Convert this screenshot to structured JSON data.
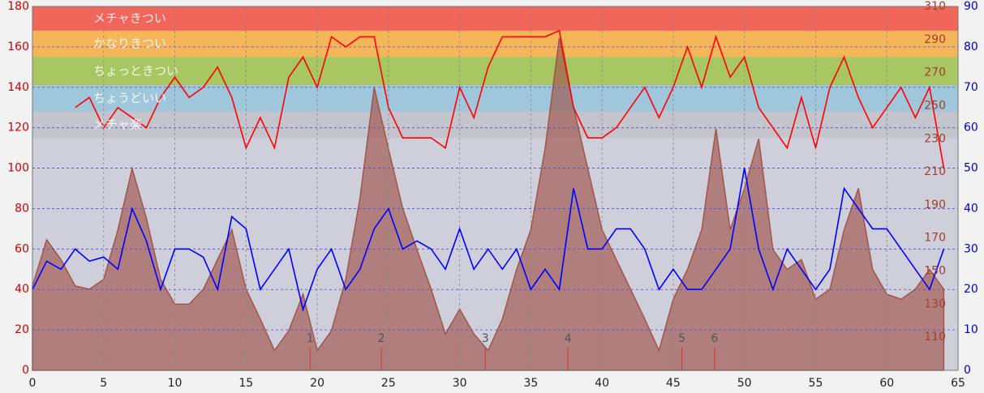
{
  "chart_data": {
    "type": "line",
    "x": [
      0,
      1,
      2,
      3,
      4,
      5,
      6,
      7,
      8,
      9,
      10,
      11,
      12,
      13,
      14,
      15,
      16,
      17,
      18,
      19,
      20,
      21,
      22,
      23,
      24,
      25,
      26,
      27,
      28,
      29,
      30,
      31,
      32,
      33,
      34,
      35,
      36,
      37,
      38,
      39,
      40,
      41,
      42,
      43,
      44,
      45,
      46,
      47,
      48,
      49,
      50,
      51,
      52,
      53,
      54,
      55,
      56,
      57,
      58,
      59,
      60,
      61,
      62,
      63,
      64
    ],
    "xlim": [
      0,
      65
    ],
    "xticks": [
      0,
      5,
      10,
      15,
      20,
      25,
      30,
      35,
      40,
      45,
      50,
      55,
      60,
      65
    ],
    "ylim": [
      0,
      180
    ],
    "yticks": [
      0,
      20,
      40,
      60,
      80,
      100,
      120,
      140,
      160,
      180
    ],
    "y2lim": [
      90,
      310
    ],
    "y2ticks": [
      110,
      130,
      150,
      170,
      190,
      210,
      230,
      250,
      270,
      290,
      310
    ],
    "y3lim": [
      0,
      90
    ],
    "y3ticks": [
      0,
      10,
      20,
      30,
      40,
      50,
      60,
      70,
      80,
      90
    ],
    "grid": true,
    "zones": [
      {
        "label": "メチャきつい",
        "from": 168,
        "to": 180,
        "color": "#f0665a"
      },
      {
        "label": "かなりきつい",
        "from": 155,
        "to": 168,
        "color": "#f5b65a"
      },
      {
        "label": "ちょっときつい",
        "from": 141,
        "to": 155,
        "color": "#a8c662"
      },
      {
        "label": "ちょうどいい",
        "from": 128,
        "to": 141,
        "color": "#9fc6da"
      },
      {
        "label": "メチャ楽",
        "from": 115,
        "to": 128,
        "color": "#c4c4cc"
      }
    ],
    "markers": [
      {
        "x": 19.5,
        "label": "1"
      },
      {
        "x": 24.5,
        "label": "2"
      },
      {
        "x": 31.8,
        "label": "3"
      },
      {
        "x": 37.6,
        "label": "4"
      },
      {
        "x": 45.6,
        "label": "5"
      },
      {
        "x": 47.9,
        "label": "6"
      }
    ],
    "series": [
      {
        "kind": "area",
        "axis": "y2",
        "color": "#a0554a",
        "values": [
          141,
          169,
          157,
          141,
          139,
          145,
          175,
          212,
          182,
          145,
          130,
          130,
          139,
          157,
          175,
          139,
          121,
          102,
          114,
          136,
          102,
          114,
          145,
          194,
          261,
          224,
          188,
          163,
          139,
          112,
          127,
          112,
          102,
          121,
          151,
          175,
          224,
          291,
          249,
          212,
          175,
          157,
          139,
          121,
          102,
          133,
          151,
          175,
          236,
          175,
          200,
          230,
          163,
          151,
          157,
          133,
          139,
          175,
          200,
          151,
          136,
          133,
          139,
          151,
          139
        ]
      },
      {
        "kind": "line",
        "axis": "y3",
        "color": "#0000ff",
        "values": [
          20,
          27,
          25,
          30,
          27,
          28,
          25,
          40,
          32,
          20,
          30,
          30,
          28,
          20,
          38,
          35,
          20,
          25,
          30,
          15,
          25,
          30,
          20,
          25,
          35,
          40,
          30,
          32,
          30,
          25,
          35,
          25,
          30,
          25,
          30,
          20,
          25,
          20,
          45,
          30,
          30,
          35,
          35,
          30,
          20,
          25,
          20,
          20,
          25,
          30,
          50,
          30,
          20,
          30,
          25,
          20,
          25,
          45,
          40,
          35,
          35,
          30,
          25,
          20,
          30
        ]
      },
      {
        "kind": "line",
        "axis": "y",
        "color": "#ff0000",
        "values": [
          null,
          null,
          null,
          130,
          135,
          120,
          130,
          125,
          120,
          135,
          145,
          135,
          140,
          150,
          135,
          110,
          125,
          110,
          145,
          155,
          140,
          165,
          160,
          165,
          165,
          130,
          115,
          115,
          115,
          110,
          140,
          125,
          150,
          165,
          165,
          165,
          165,
          168,
          130,
          115,
          115,
          120,
          130,
          140,
          125,
          140,
          160,
          140,
          165,
          145,
          155,
          130,
          120,
          110,
          135,
          110,
          140,
          155,
          135,
          120,
          130,
          140,
          125,
          140,
          100
        ]
      }
    ]
  }
}
